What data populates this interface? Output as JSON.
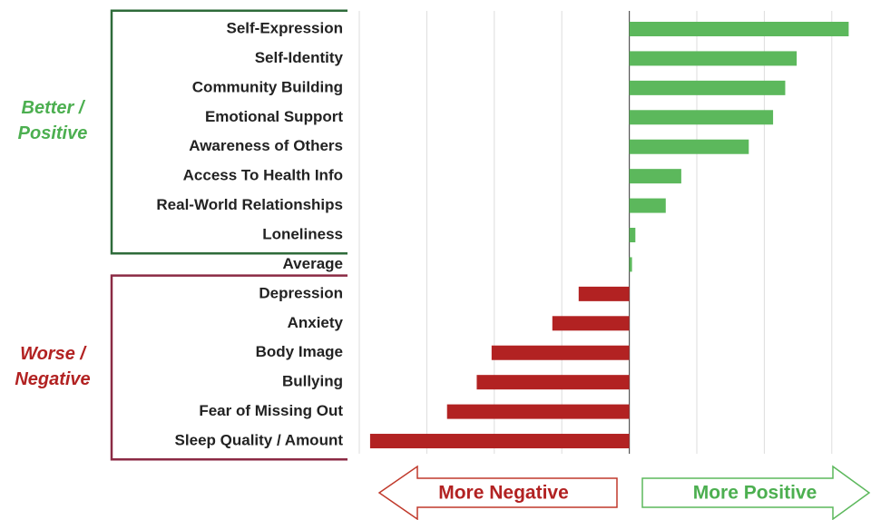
{
  "chart_data": {
    "type": "barh",
    "categories": [
      "Self-Expression",
      "Self-Identity",
      "Community Building",
      "Emotional Support",
      "Awareness of Others",
      "Access To Health Info",
      "Real-World Relationships",
      "Loneliness",
      "Average",
      "Depression",
      "Anxiety",
      "Body Image",
      "Bullying",
      "Fear of Missing Out",
      "Sleep Quality / Amount"
    ],
    "values": [
      3.25,
      2.48,
      2.31,
      2.13,
      1.77,
      0.77,
      0.54,
      0.09,
      0.04,
      -0.75,
      -1.14,
      -2.04,
      -2.26,
      -2.7,
      -3.84
    ],
    "positive_color": "#5cb85c",
    "negative_color": "#b22222",
    "xlim": [
      -4,
      3.5
    ],
    "xticks": [
      -4,
      -3,
      -2,
      -1,
      0,
      1,
      2,
      3
    ],
    "tick_labels": false,
    "grid": true,
    "groups": [
      {
        "label_lines": [
          "Better /",
          "Positive"
        ],
        "color": "#4caf50",
        "bracket_color": "#2e6b3a",
        "start": 0,
        "end": 7
      },
      {
        "label_lines": [
          "Worse /",
          "Negative"
        ],
        "color": "#b22222",
        "bracket_color": "#8b2a44",
        "start": 9,
        "end": 14
      }
    ],
    "annotations": [
      "More Negative",
      "More Positive"
    ]
  }
}
